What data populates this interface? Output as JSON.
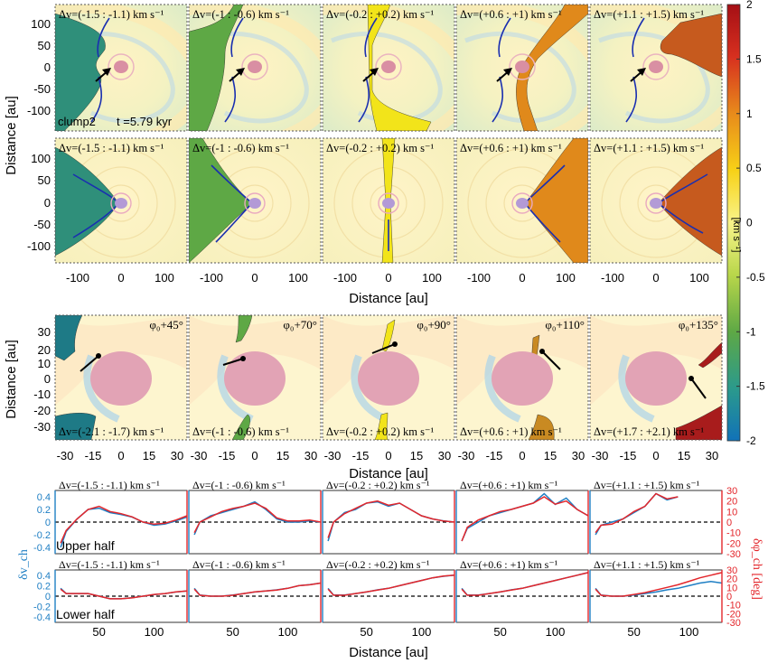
{
  "figure": {
    "rows": [
      {
        "row": "top",
        "panel_labels": [
          "Δv=(-1.5 : -1.1) km s⁻¹",
          "Δv=(-1 : -0.6) km s⁻¹",
          "Δv=(-0.2 : +0.2) km s⁻¹",
          "Δv=(+0.6 : +1) km s⁻¹",
          "Δv=(+1.1 : +1.5) km s⁻¹"
        ],
        "corner_text": {
          "name": "clump2",
          "time": "t =5.79 kyr"
        }
      },
      {
        "row": "middle",
        "panel_labels": [
          "Δv=(-1.5 : -1.1) km s⁻¹",
          "Δv=(-1 : -0.6) km s⁻¹",
          "Δv=(-0.2 : +0.2) km s⁻¹",
          "Δv=(+0.6 : +1) km s⁻¹",
          "Δv=(+1.1 : +1.5) km s⁻¹"
        ]
      },
      {
        "row": "zoom",
        "angle_labels": [
          "φ₀+45°",
          "φ₀+70°",
          "φ₀+90°",
          "φ₀+110°",
          "φ₀+135°"
        ],
        "panel_labels": [
          "Δv=(-2.1 : -1.7) km s⁻¹",
          "Δv=(-1 : -0.6) km s⁻¹",
          "Δv=(-0.2 : +0.2) km s⁻¹",
          "Δv=(+0.6 : +1) km s⁻¹",
          "Δv=(+1.7 : +2.1) km s⁻¹"
        ]
      }
    ],
    "axes": {
      "ylabel_maps": "Distance [au]",
      "xlabel_maps": "Distance [au]",
      "xlabel_profiles": "Distance [au]",
      "map_ticks": [
        "100",
        "50",
        "0",
        "-50",
        "-100"
      ],
      "map_xticks": [
        "-100",
        "0",
        "100"
      ],
      "zoom_yticks": [
        "30",
        "20",
        "10",
        "0",
        "-10",
        "-20",
        "-30"
      ],
      "zoom_xticks": [
        "-30",
        "-15",
        "0",
        "15",
        "30"
      ],
      "profile_xticks": [
        "50",
        "100"
      ],
      "profile_left_ticks": [
        "0.4",
        "0.2",
        "0",
        "-0.2",
        "-0.4"
      ],
      "profile_right_ticks": [
        "30",
        "20",
        "10",
        "0",
        "-10",
        "-20",
        "-30"
      ],
      "profile_left_label": "δv_ch",
      "profile_right_label": "δφ_ch [deg]",
      "upper_half_label": "Upper half",
      "lower_half_label": "Lower half"
    },
    "colorbar": {
      "label": "[km s⁻¹]",
      "ticks": [
        "2",
        "1.5",
        "1",
        "0.5",
        "0",
        "-0.5",
        "-1",
        "-1.5",
        "-2"
      ],
      "range": [
        -2,
        2
      ]
    }
  },
  "chart_data": {
    "type": "line",
    "colors": {
      "delta_v": "#1f7fc4",
      "delta_phi": "#e3262b"
    },
    "upper_half": [
      {
        "panel_label": "Δv=(-1.5 : -1.1) km s⁻¹",
        "x": [
          15,
          20,
          30,
          40,
          50,
          60,
          70,
          80,
          90,
          100,
          110,
          120,
          130
        ],
        "delta_v": [
          -0.4,
          -0.15,
          0.05,
          0.2,
          0.22,
          0.15,
          0.12,
          0.08,
          0.0,
          -0.05,
          -0.03,
          0.02,
          0.08
        ],
        "delta_phi": [
          -20,
          -8,
          3,
          12,
          15,
          10,
          8,
          5,
          0,
          -2,
          -1,
          2,
          6
        ]
      },
      {
        "panel_label": "Δv=(-1 : -0.6) km s⁻¹",
        "x": [
          15,
          20,
          30,
          40,
          50,
          60,
          70,
          80,
          90,
          100,
          110,
          120,
          130
        ],
        "delta_v": [
          -0.2,
          0.0,
          0.1,
          0.15,
          0.2,
          0.25,
          0.32,
          0.2,
          0.05,
          0.0,
          0.0,
          0.02,
          0.0
        ],
        "delta_phi": [
          -10,
          0,
          5,
          10,
          13,
          15,
          18,
          13,
          4,
          1,
          1,
          2,
          0
        ]
      },
      {
        "panel_label": "Δv=(-0.2 : +0.2) km s⁻¹",
        "x": [
          15,
          20,
          30,
          40,
          50,
          60,
          70,
          80,
          90,
          100,
          110,
          120,
          130
        ],
        "delta_v": [
          -0.3,
          0.0,
          0.15,
          0.2,
          0.3,
          0.32,
          0.25,
          0.3,
          0.2,
          0.1,
          0.05,
          0.02,
          0.0
        ],
        "delta_phi": [
          -15,
          0,
          8,
          13,
          18,
          20,
          16,
          18,
          12,
          6,
          3,
          1,
          0
        ]
      },
      {
        "panel_label": "Δv=(+0.6 : +1) km s⁻¹",
        "x": [
          15,
          20,
          30,
          40,
          50,
          60,
          70,
          80,
          90,
          100,
          110,
          120,
          130
        ],
        "delta_v": [
          -0.3,
          -0.1,
          0.0,
          0.1,
          0.15,
          0.2,
          0.25,
          0.3,
          0.45,
          0.28,
          0.38,
          0.2,
          0.1
        ],
        "delta_phi": [
          -18,
          -5,
          2,
          6,
          10,
          12,
          15,
          18,
          24,
          17,
          20,
          12,
          6
        ]
      },
      {
        "panel_label": "Δv=(+1.1 : +1.5) km s⁻¹",
        "x": [
          15,
          20,
          30,
          40,
          50,
          60,
          70,
          80,
          90
        ],
        "delta_v": [
          -0.2,
          -0.05,
          0.0,
          0.05,
          0.15,
          0.25,
          0.45,
          0.35,
          0.4
        ],
        "delta_phi": [
          -10,
          -3,
          -2,
          3,
          10,
          15,
          27,
          22,
          24
        ]
      }
    ],
    "lower_half": [
      {
        "panel_label": "Δv=(-1.5 : -1.1) km s⁻¹",
        "x": [
          15,
          20,
          30,
          40,
          50,
          60,
          70,
          80,
          90,
          100,
          110,
          120,
          130
        ],
        "delta_v": [
          0.15,
          0.05,
          0.05,
          0.05,
          0.0,
          -0.05,
          -0.05,
          -0.03,
          0.0,
          0.03,
          0.05,
          0.08,
          0.1
        ],
        "delta_phi": [
          8,
          3,
          3,
          3,
          0,
          -3,
          -3,
          -2,
          0,
          2,
          3,
          5,
          6
        ]
      },
      {
        "panel_label": "Δv=(-1 : -0.6) km s⁻¹",
        "x": [
          15,
          20,
          30,
          40,
          50,
          60,
          70,
          80,
          90,
          100,
          110,
          120,
          130
        ],
        "delta_v": [
          0.15,
          0.02,
          0.0,
          0.0,
          0.02,
          0.05,
          0.08,
          0.1,
          0.12,
          0.15,
          0.2,
          0.22,
          0.25
        ],
        "delta_phi": [
          8,
          1,
          0,
          0,
          1,
          3,
          5,
          6,
          7,
          9,
          12,
          13,
          15
        ]
      },
      {
        "panel_label": "Δv=(-0.2 : +0.2) km s⁻¹",
        "x": [
          15,
          20,
          30,
          40,
          50,
          60,
          70,
          80,
          90,
          100,
          110,
          120,
          130
        ],
        "delta_v": [
          0.15,
          0.02,
          0.02,
          0.05,
          0.08,
          0.12,
          0.15,
          0.2,
          0.25,
          0.3,
          0.35,
          0.38,
          0.4
        ],
        "delta_phi": [
          8,
          1,
          1,
          3,
          5,
          7,
          9,
          12,
          15,
          18,
          21,
          23,
          24
        ]
      },
      {
        "panel_label": "Δv=(+0.6 : +1) km s⁻¹",
        "x": [
          15,
          20,
          30,
          40,
          50,
          60,
          70,
          80,
          90,
          100,
          110,
          120,
          130
        ],
        "delta_v": [
          0.15,
          0.02,
          0.02,
          0.05,
          0.08,
          0.12,
          0.15,
          0.2,
          0.25,
          0.3,
          0.35,
          0.4,
          0.45
        ],
        "delta_phi": [
          8,
          1,
          1,
          3,
          5,
          7,
          9,
          12,
          15,
          18,
          21,
          24,
          27
        ]
      },
      {
        "panel_label": "Δv=(+1.1 : +1.5) km s⁻¹",
        "x": [
          15,
          20,
          30,
          40,
          50,
          60,
          70,
          80,
          90,
          100,
          110,
          120,
          130
        ],
        "delta_v": [
          0.15,
          0.02,
          0.0,
          0.0,
          0.02,
          0.05,
          0.08,
          0.12,
          0.15,
          0.2,
          0.25,
          0.28,
          0.25
        ],
        "delta_phi": [
          8,
          1,
          0,
          0,
          2,
          4,
          7,
          10,
          13,
          17,
          21,
          24,
          27
        ]
      }
    ],
    "xlim": [
      10,
      130
    ],
    "ylim_left": [
      -0.5,
      0.5
    ],
    "ylim_right": [
      -30,
      30
    ]
  }
}
